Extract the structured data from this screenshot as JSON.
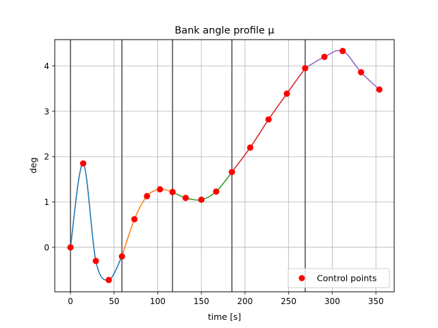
{
  "chart_data": {
    "type": "line",
    "title": "Bank angle profile μ",
    "xlabel": "time [s]",
    "ylabel": "deg",
    "xlim": [
      -18,
      371
    ],
    "ylim": [
      -0.98,
      4.58
    ],
    "xticks": [
      0,
      50,
      100,
      150,
      200,
      250,
      300,
      350
    ],
    "yticks": [
      0,
      1,
      2,
      3,
      4
    ],
    "grid": true,
    "legend": {
      "position": "lower-right",
      "entries": [
        {
          "label": "Control points",
          "color": "#ff0000",
          "marker": "circle"
        }
      ]
    },
    "segment_boundaries": [
      0,
      59,
      117,
      185,
      269
    ],
    "segment_boundary_color": "#555555",
    "series": [
      {
        "color": "#1f77b4",
        "x": [
          0,
          14.6,
          29.1,
          43.9,
          59.0
        ],
        "y": [
          0.0,
          1.85,
          -0.3,
          -0.72,
          -0.2
        ]
      },
      {
        "color": "#ff7f0e",
        "x": [
          59.0,
          73.3,
          87.7,
          102.6,
          117.0
        ],
        "y": [
          -0.2,
          0.62,
          1.13,
          1.28,
          1.22
        ]
      },
      {
        "color": "#2ca02c",
        "x": [
          117.0,
          132.0,
          150.0,
          167.0,
          185.0
        ],
        "y": [
          1.22,
          1.09,
          1.05,
          1.23,
          1.66
        ]
      },
      {
        "color": "#d62728",
        "x": [
          185.0,
          206.0,
          227.0,
          248.0,
          269.0
        ],
        "y": [
          1.66,
          2.2,
          2.82,
          3.39,
          3.95
        ]
      },
      {
        "color": "#9467bd",
        "x": [
          269.0,
          291.0,
          312.0,
          333.0,
          354.0
        ],
        "y": [
          3.95,
          4.2,
          4.33,
          3.86,
          3.48
        ]
      }
    ],
    "control_points": {
      "name": "Control points",
      "color": "#ff0000",
      "x": [
        0,
        14.6,
        29.1,
        43.9,
        59.0,
        73.3,
        87.7,
        102.6,
        117.0,
        132.0,
        150.0,
        167.0,
        185.0,
        206.0,
        227.0,
        248.0,
        269.0,
        291.0,
        312.0,
        333.0,
        354.0
      ],
      "y": [
        0.0,
        1.85,
        -0.3,
        -0.72,
        -0.2,
        0.62,
        1.13,
        1.28,
        1.22,
        1.09,
        1.05,
        1.23,
        1.66,
        2.2,
        2.82,
        3.39,
        3.95,
        4.2,
        4.33,
        3.86,
        3.48
      ]
    }
  }
}
